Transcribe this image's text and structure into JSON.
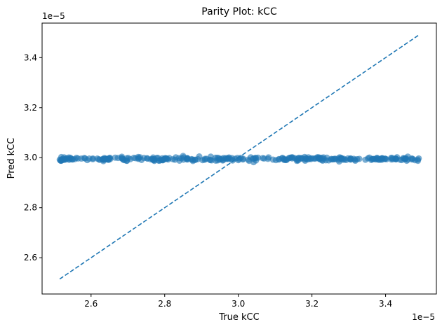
{
  "chart_data": {
    "type": "scatter",
    "title": "Parity Plot: kCC",
    "xlabel": "True kCC",
    "ylabel": "Pred kCC",
    "x_offset_label": "1e−5",
    "y_offset_label": "1e−5",
    "xlim": [
      2.467,
      3.538
    ],
    "ylim": [
      2.455,
      3.538
    ],
    "x_ticks": [
      2.6,
      2.8,
      3.0,
      3.2,
      3.4
    ],
    "y_ticks": [
      2.6,
      2.8,
      3.0,
      3.2,
      3.4
    ],
    "x_tick_labels": [
      "2.6",
      "2.8",
      "3.0",
      "3.2",
      "3.4"
    ],
    "y_tick_labels": [
      "2.6",
      "2.8",
      "3.0",
      "3.2",
      "3.4"
    ],
    "grid": false,
    "colors": {
      "points": "#1f77b4",
      "reference_line": "#1f77b4"
    },
    "reference_line": {
      "style": "dashed",
      "x": [
        2.515,
        3.49
      ],
      "y": [
        2.515,
        3.49
      ]
    },
    "series": [
      {
        "points": {
          "x_min": 2.515,
          "x_max": 3.49,
          "count": 300,
          "y_center": 2.995,
          "y_spread": 0.012,
          "outliers": [
            [
              2.515,
              2.992
            ],
            [
              2.85,
              3.007
            ],
            [
              3.48,
              2.99
            ],
            [
              3.49,
              2.997
            ]
          ]
        }
      }
    ]
  }
}
